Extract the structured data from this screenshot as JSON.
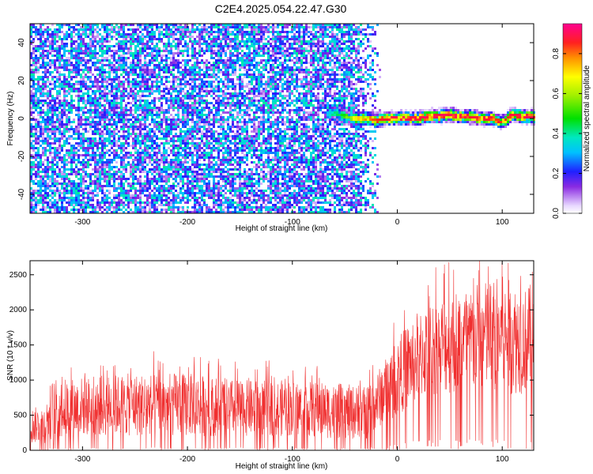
{
  "title": "C2E4.2025.054.22.47.G30",
  "chart_data": [
    {
      "type": "heatmap",
      "title": "C2E4.2025.054.22.47.G30",
      "xlabel": "Height of straight line (km)",
      "ylabel": "Frequency (Hz)",
      "xlim": [
        -350,
        130
      ],
      "ylim": [
        -50,
        50
      ],
      "x_ticks": [
        -300,
        -200,
        -100,
        0,
        100
      ],
      "y_ticks": [
        -40,
        -20,
        0,
        20,
        40
      ],
      "colorbar": {
        "label": "Normalized spectral amplitude",
        "range": [
          0,
          0.95
        ],
        "ticks": [
          "0.0",
          "0.2",
          "0.4",
          "0.6",
          "0.8"
        ],
        "colormap": "rainbow"
      },
      "noise_region": {
        "x": [
          -350,
          -40
        ],
        "amplitude": [
          0.05,
          0.4
        ]
      },
      "signal_ridge": {
        "x": [
          -68,
          -60,
          -50,
          -40,
          -30,
          -20,
          -10,
          0,
          10,
          20,
          30,
          40,
          50,
          60,
          70,
          80,
          90,
          100,
          110,
          120,
          130
        ],
        "frequency": [
          2,
          3,
          1,
          0,
          0,
          -1,
          0,
          0,
          0,
          0,
          1,
          1,
          2,
          1,
          1,
          0,
          0,
          -2,
          2,
          1,
          1
        ],
        "peak_amplitude": [
          0.3,
          0.45,
          0.55,
          0.7,
          0.8,
          0.85,
          0.88,
          0.9,
          0.9,
          0.9,
          0.92,
          0.9,
          0.92,
          0.9,
          0.9,
          0.88,
          0.88,
          0.85,
          0.9,
          0.9,
          0.9
        ]
      }
    },
    {
      "type": "line",
      "xlabel": "Height of straight line (km)",
      "ylabel": "SNR (10 * v/v)",
      "xlim": [
        -350,
        130
      ],
      "ylim": [
        0,
        2700
      ],
      "x_ticks": [
        -300,
        -200,
        -100,
        0,
        100
      ],
      "y_ticks": [
        0,
        500,
        1000,
        1500,
        2000,
        2500
      ],
      "color": "#f03030",
      "envelope": {
        "x": [
          -350,
          -335,
          -330,
          -300,
          -250,
          -200,
          -150,
          -100,
          -50,
          -30,
          -20,
          0,
          20,
          40,
          60,
          80,
          100,
          120,
          130
        ],
        "low": [
          100,
          100,
          150,
          200,
          200,
          200,
          200,
          200,
          150,
          150,
          300,
          500,
          700,
          800,
          800,
          800,
          800,
          800,
          900
        ],
        "high": [
          600,
          650,
          1000,
          1050,
          1100,
          1100,
          1000,
          1000,
          950,
          900,
          1100,
          1600,
          2000,
          2200,
          2300,
          2400,
          2500,
          2300,
          2400
        ]
      }
    }
  ]
}
